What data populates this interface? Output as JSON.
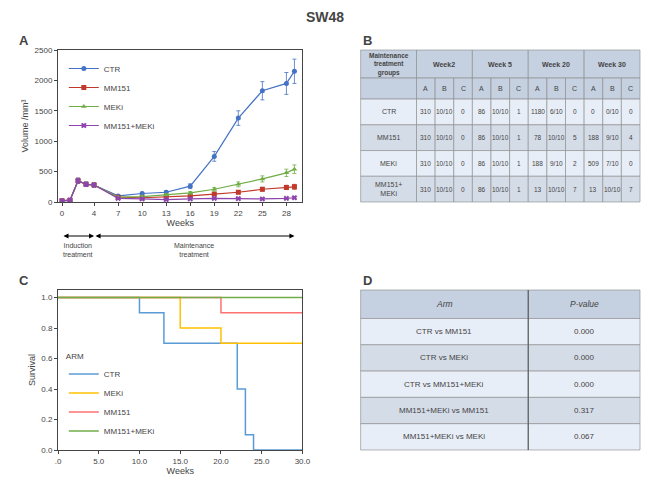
{
  "title": "SW48",
  "chart_data": [
    {
      "type": "line",
      "title": "A",
      "x": [
        0,
        1,
        2,
        3,
        4,
        7,
        10,
        13,
        16,
        19,
        22,
        25,
        28,
        29
      ],
      "xlabel": "Weeks",
      "ylabel": "Volume /mm³",
      "xlim": [
        -0.5,
        30
      ],
      "xticks": [
        0,
        4,
        7,
        10,
        13,
        16,
        19,
        22,
        25,
        28
      ],
      "ylim": [
        0,
        2500
      ],
      "yticks": [
        0,
        500,
        1000,
        1500,
        2000,
        2500
      ],
      "grid": false,
      "legend": "upper left",
      "series": [
        {
          "name": "CTR",
          "color": "#4472C4",
          "marker": "circle",
          "values": [
            20,
            30,
            350,
            290,
            280,
            100,
            140,
            160,
            260,
            750,
            1380,
            1830,
            1950,
            2150
          ],
          "errors": [
            5,
            8,
            40,
            35,
            30,
            15,
            20,
            25,
            40,
            80,
            120,
            150,
            180,
            200
          ]
        },
        {
          "name": "MM151",
          "color": "#C0392B",
          "marker": "square",
          "values": [
            20,
            30,
            350,
            290,
            280,
            80,
            70,
            80,
            100,
            130,
            160,
            210,
            240,
            250
          ],
          "errors": [
            5,
            8,
            40,
            35,
            30,
            10,
            10,
            12,
            15,
            20,
            25,
            30,
            35,
            40
          ]
        },
        {
          "name": "MEKi",
          "color": "#70AD47",
          "marker": "triangle-up",
          "values": [
            20,
            30,
            350,
            290,
            280,
            80,
            90,
            120,
            150,
            210,
            290,
            380,
            480,
            540
          ],
          "errors": [
            5,
            8,
            40,
            35,
            30,
            10,
            12,
            18,
            22,
            30,
            40,
            50,
            60,
            70
          ]
        },
        {
          "name": "MM151+MEKi",
          "color": "#8E44AD",
          "marker": "x",
          "values": [
            20,
            30,
            350,
            290,
            280,
            60,
            50,
            40,
            50,
            60,
            55,
            50,
            60,
            70
          ],
          "errors": [
            5,
            8,
            40,
            35,
            30,
            8,
            8,
            7,
            8,
            9,
            8,
            8,
            9,
            10
          ]
        }
      ],
      "annotations": [
        {
          "text": "Induction\ntreatment",
          "x": [
            0,
            4
          ]
        },
        {
          "text": "Maintenance\ntreatment",
          "x": [
            4,
            29
          ]
        }
      ]
    },
    {
      "type": "table",
      "title": "B",
      "row_header": "Maintenance\ntreatment\ngroups",
      "columns": [
        "Week2",
        "Week 5",
        "Week 20",
        "Week 30"
      ],
      "subcolumns": [
        "A",
        "B",
        "C"
      ],
      "rows": [
        "CTR",
        "MM151",
        "MEKi",
        "MM151+\nMEKi"
      ],
      "values": [
        [
          [
            310,
            "10/10",
            0
          ],
          [
            86,
            "10/10",
            1
          ],
          [
            1180,
            "6/10",
            0
          ],
          [
            0,
            "0/10",
            0
          ]
        ],
        [
          [
            310,
            "10/10",
            0
          ],
          [
            86,
            "10/10",
            1
          ],
          [
            78,
            "10/10",
            5
          ],
          [
            188,
            "9/10",
            4
          ]
        ],
        [
          [
            310,
            "10/10",
            0
          ],
          [
            86,
            "10/10",
            1
          ],
          [
            188,
            "9/10",
            2
          ],
          [
            509,
            "7/10",
            0
          ]
        ],
        [
          [
            310,
            "10/10",
            0
          ],
          [
            86,
            "10/10",
            1
          ],
          [
            13,
            "10/10",
            7
          ],
          [
            13,
            "10/10",
            7
          ]
        ]
      ],
      "color": "#C5D0E0",
      "colors": [
        "#E8EEF7",
        "#D4DCE8"
      ]
    },
    {
      "type": "step",
      "title": "C",
      "xlabel": "Weeks",
      "ylabel": "Survival",
      "xlim": [
        0,
        30
      ],
      "xticks": [
        {
          "value": 0,
          "label": ".0"
        },
        {
          "value": 5,
          "label": "5.0"
        },
        {
          "value": 10,
          "label": "10.0"
        },
        {
          "value": 15,
          "label": "15.0"
        },
        {
          "value": 20,
          "label": "20.0"
        },
        {
          "value": 25,
          "label": "25.0"
        },
        {
          "value": 30,
          "label": "30.0"
        }
      ],
      "ylim": [
        0.0,
        1.05
      ],
      "yticks": [
        {
          "value": 0,
          "label": "0.0"
        },
        0.2,
        0.4,
        0.6,
        0.8,
        {
          "value": 1,
          "label": "1.0"
        }
      ],
      "grid": false,
      "legend": "lower left",
      "legend_title": "ARM",
      "series": [
        {
          "name": "CTR",
          "color": "#5B9BD5",
          "x": [
            0,
            10,
            10,
            13,
            13,
            22,
            22,
            23,
            23,
            24,
            24,
            30
          ],
          "values": [
            1.0,
            1.0,
            0.9,
            0.9,
            0.7,
            0.7,
            0.4,
            0.4,
            0.1,
            0.1,
            0.0,
            0.0
          ]
        },
        {
          "name": "MEKi",
          "color": "#FFC000",
          "x": [
            0,
            15,
            15,
            20,
            20,
            21,
            21,
            30
          ],
          "values": [
            1.0,
            1.0,
            0.8,
            0.8,
            0.7,
            0.7,
            0.7,
            0.7
          ]
        },
        {
          "name": "MM151",
          "color": "#FF7070",
          "x": [
            0,
            20,
            20,
            30
          ],
          "values": [
            1.0,
            1.0,
            0.9,
            0.9
          ]
        },
        {
          "name": "MM151+MEKi",
          "color": "#70AD47",
          "x": [
            0,
            30
          ],
          "values": [
            1.0,
            1.0
          ]
        }
      ]
    },
    {
      "type": "table",
      "title": "D",
      "columns": [
        "Arm",
        "P-value"
      ],
      "rows": [
        "CTR vs MM151",
        "CTR vs MEKi",
        "CTR vs MM151+MEKi",
        "MM151+MEKi vs MM151",
        "MM151+MEKi vs MEKi"
      ],
      "values": [
        "0.000",
        "0.000",
        "0.000",
        "0.317",
        "0.067"
      ],
      "color": "#C5D0E0",
      "colors": [
        "#E8EEF7",
        "#D4DCE8"
      ]
    }
  ]
}
